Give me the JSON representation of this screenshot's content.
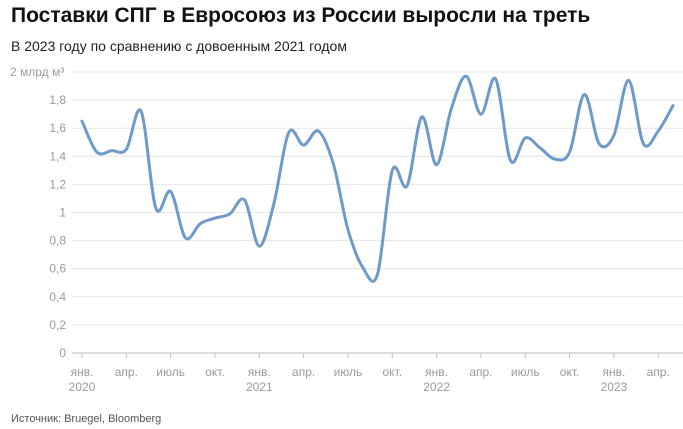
{
  "title": "Поставки СПГ в Евросоюз из России выросли на треть",
  "subtitle": "В 2023 году по сравнению с довоенным 2021 годом",
  "source": "Источник: Bruegel, Bloomberg",
  "chart_data": {
    "type": "line",
    "ylabel": "2 млрд м³",
    "ylim": [
      0,
      2
    ],
    "y_ticks": [
      "0",
      "0,2",
      "0,4",
      "0,6",
      "0,8",
      "1",
      "1,2",
      "1,4",
      "1,6",
      "1,8"
    ],
    "y_tick_values": [
      0,
      0.2,
      0.4,
      0.6,
      0.8,
      1.0,
      1.2,
      1.4,
      1.6,
      1.8
    ],
    "x_ticks": [
      {
        "month": 0,
        "label": "янв.",
        "year": "2020"
      },
      {
        "month": 3,
        "label": "апр."
      },
      {
        "month": 6,
        "label": "июль"
      },
      {
        "month": 9,
        "label": "окт."
      },
      {
        "month": 12,
        "label": "янв.",
        "year": "2021"
      },
      {
        "month": 15,
        "label": "апр."
      },
      {
        "month": 18,
        "label": "июль"
      },
      {
        "month": 21,
        "label": "окт."
      },
      {
        "month": 24,
        "label": "янв.",
        "year": "2022"
      },
      {
        "month": 27,
        "label": "апр."
      },
      {
        "month": 30,
        "label": "июль"
      },
      {
        "month": 33,
        "label": "окт."
      },
      {
        "month": 36,
        "label": "янв.",
        "year": "2023"
      },
      {
        "month": 39,
        "label": "апр."
      }
    ],
    "grid": true,
    "line_color": "#6f9ac9",
    "series": [
      {
        "x": [
          0,
          1,
          2,
          3,
          4,
          5,
          6,
          7,
          8,
          9,
          10,
          11,
          12,
          13,
          14,
          15,
          16,
          17,
          18,
          19,
          20,
          21,
          22,
          23,
          24,
          25,
          26,
          27,
          28,
          29,
          30,
          31,
          32,
          33,
          34,
          35,
          36,
          37,
          38,
          39,
          40
        ],
        "values": [
          1.65,
          1.43,
          1.44,
          1.45,
          1.72,
          1.03,
          1.15,
          0.82,
          0.92,
          0.96,
          0.99,
          1.09,
          0.76,
          1.07,
          1.57,
          1.48,
          1.58,
          1.35,
          0.88,
          0.61,
          0.56,
          1.3,
          1.19,
          1.68,
          1.34,
          1.74,
          1.97,
          1.7,
          1.95,
          1.37,
          1.53,
          1.46,
          1.38,
          1.43,
          1.84,
          1.49,
          1.55,
          1.94,
          1.49,
          1.58,
          1.76
        ]
      }
    ]
  }
}
